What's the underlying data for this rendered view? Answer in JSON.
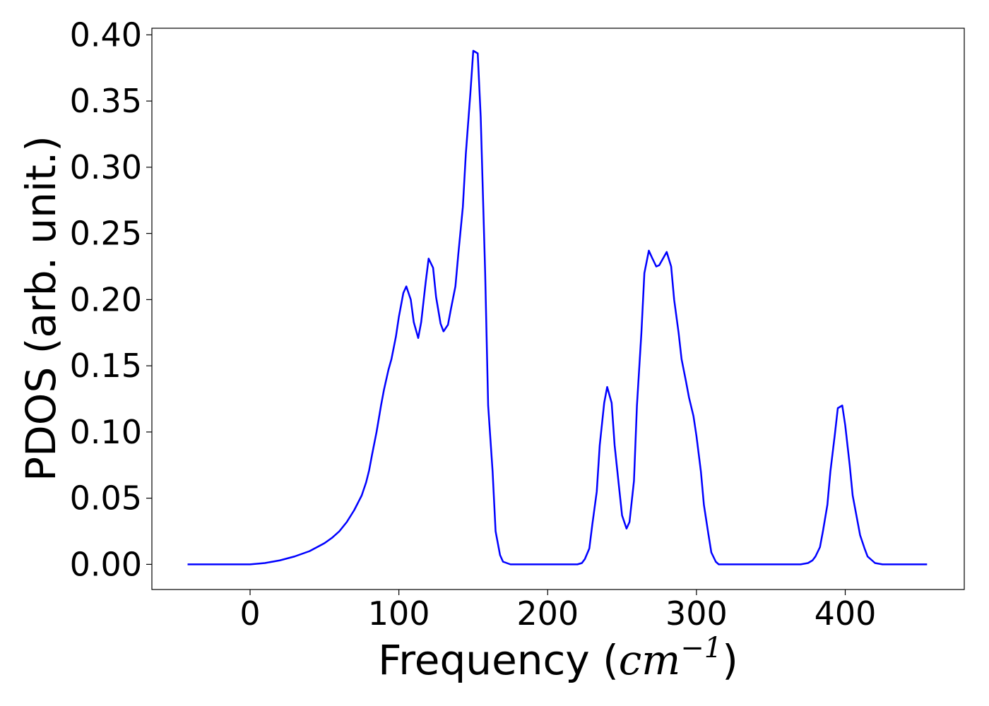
{
  "chart_data": {
    "type": "line",
    "title": "",
    "xlabel": "Frequency (",
    "xlabel_math": "cm",
    "xlabel_sup": "−1",
    "xlabel_close": ")",
    "ylabel": "PDOS (arb. unit.)",
    "xlim": [
      -66,
      480
    ],
    "ylim": [
      -0.019,
      0.405
    ],
    "xticks": [
      0,
      100,
      200,
      300,
      400
    ],
    "xtick_labels": [
      "0",
      "100",
      "200",
      "300",
      "400"
    ],
    "yticks": [
      0.0,
      0.05,
      0.1,
      0.15,
      0.2,
      0.25,
      0.3,
      0.35,
      0.4
    ],
    "ytick_labels": [
      "0.00",
      "0.05",
      "0.10",
      "0.15",
      "0.20",
      "0.25",
      "0.30",
      "0.35",
      "0.40"
    ],
    "grid": false,
    "legend": "none",
    "series": [
      {
        "color": "#0000ff",
        "x": [
          -42,
          -20,
          0,
          10,
          20,
          30,
          40,
          50,
          55,
          60,
          65,
          70,
          75,
          78,
          80,
          82,
          85,
          88,
          90,
          93,
          95,
          98,
          100,
          103,
          105,
          108,
          110,
          113,
          115,
          118,
          120,
          123,
          125,
          128,
          130,
          133,
          135,
          138,
          140,
          143,
          145,
          148,
          150,
          153,
          155,
          158,
          160,
          163,
          165,
          168,
          170,
          175,
          180,
          200,
          220,
          223,
          225,
          228,
          230,
          233,
          235,
          238,
          240,
          243,
          245,
          248,
          250,
          253,
          255,
          258,
          260,
          263,
          265,
          268,
          270,
          273,
          275,
          278,
          280,
          283,
          285,
          288,
          290,
          293,
          295,
          298,
          300,
          303,
          305,
          308,
          310,
          313,
          315,
          318,
          320,
          340,
          370,
          375,
          378,
          380,
          383,
          385,
          388,
          390,
          393,
          395,
          398,
          400,
          403,
          405,
          408,
          410,
          413,
          415,
          418,
          420,
          425,
          430,
          455
        ],
        "y": [
          0.0,
          0.0,
          0.0,
          0.001,
          0.003,
          0.006,
          0.01,
          0.016,
          0.02,
          0.025,
          0.032,
          0.041,
          0.052,
          0.062,
          0.071,
          0.083,
          0.1,
          0.12,
          0.132,
          0.147,
          0.155,
          0.172,
          0.187,
          0.205,
          0.21,
          0.2,
          0.183,
          0.171,
          0.183,
          0.213,
          0.231,
          0.224,
          0.202,
          0.182,
          0.176,
          0.181,
          0.193,
          0.21,
          0.235,
          0.27,
          0.31,
          0.355,
          0.388,
          0.386,
          0.338,
          0.22,
          0.12,
          0.07,
          0.025,
          0.007,
          0.002,
          0.0,
          0.0,
          0.0,
          0.0,
          0.001,
          0.004,
          0.012,
          0.03,
          0.055,
          0.09,
          0.122,
          0.134,
          0.122,
          0.09,
          0.058,
          0.037,
          0.027,
          0.032,
          0.063,
          0.12,
          0.175,
          0.22,
          0.237,
          0.232,
          0.225,
          0.226,
          0.232,
          0.236,
          0.225,
          0.2,
          0.175,
          0.155,
          0.138,
          0.126,
          0.112,
          0.097,
          0.07,
          0.045,
          0.023,
          0.009,
          0.002,
          0.0,
          0.0,
          0.0,
          0.0,
          0.0,
          0.001,
          0.003,
          0.006,
          0.013,
          0.025,
          0.045,
          0.07,
          0.098,
          0.118,
          0.12,
          0.105,
          0.075,
          0.052,
          0.034,
          0.022,
          0.012,
          0.006,
          0.003,
          0.001,
          0.0,
          0.0,
          0.0
        ]
      }
    ]
  }
}
